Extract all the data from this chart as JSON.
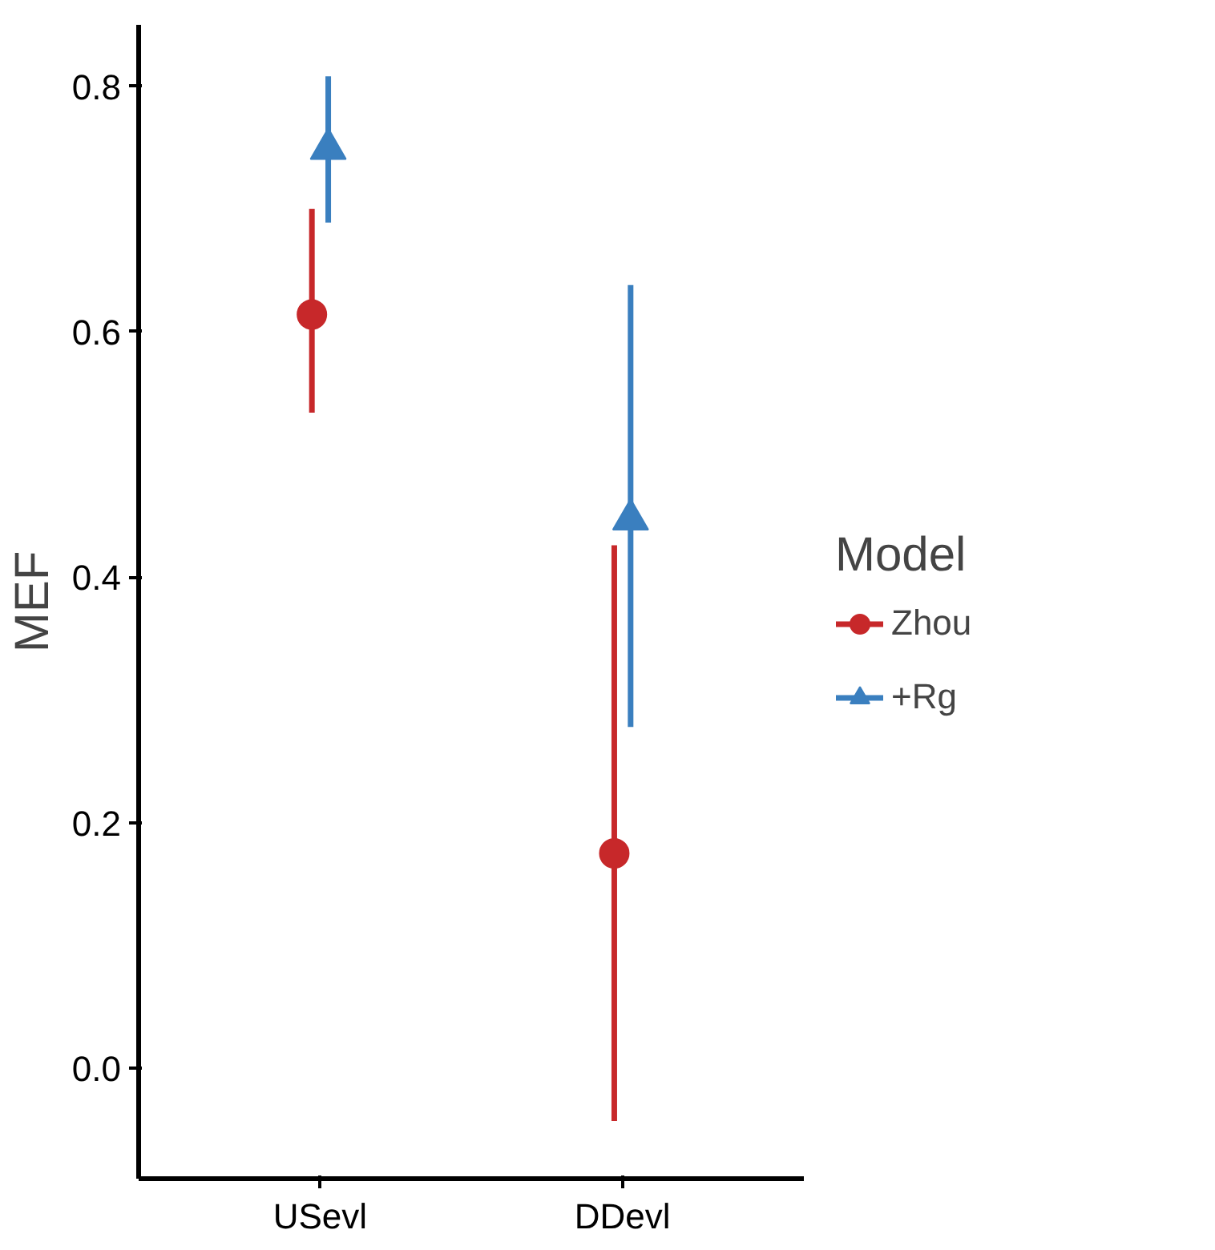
{
  "chart_data": {
    "type": "scatter",
    "ylabel": "MEF",
    "legend_title": "Model",
    "categories": [
      "USevl",
      "DDevl"
    ],
    "series": [
      {
        "name": "Zhou",
        "color": "#c7282a",
        "marker": "circle",
        "values": [
          0.614,
          0.175
        ],
        "errors": [
          [
            0.534,
            0.7
          ],
          [
            -0.043,
            0.426
          ]
        ]
      },
      {
        "name": "+Rg",
        "color": "#3a7fbf",
        "marker": "triangle",
        "values": [
          0.749,
          0.447
        ],
        "errors": [
          [
            0.689,
            0.808
          ],
          [
            0.278,
            0.638
          ]
        ]
      }
    ],
    "ylim": [
      -0.09,
      0.85
    ],
    "yticks": [
      {
        "value": 0,
        "label": "0.0"
      },
      0.2,
      0.4,
      0.6,
      0.8
    ],
    "grid": false,
    "legend": "right"
  }
}
